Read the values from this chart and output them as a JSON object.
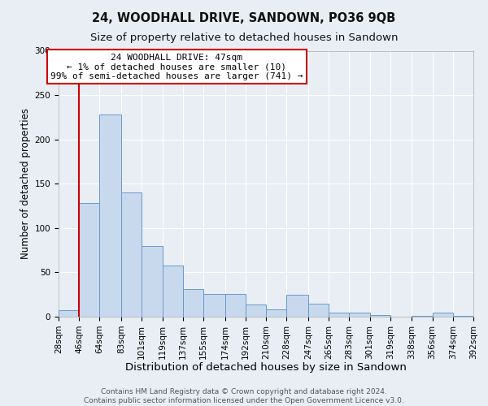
{
  "title": "24, WOODHALL DRIVE, SANDOWN, PO36 9QB",
  "subtitle": "Size of property relative to detached houses in Sandown",
  "xlabel": "Distribution of detached houses by size in Sandown",
  "ylabel": "Number of detached properties",
  "bar_left_edges": [
    28,
    46,
    64,
    83,
    101,
    119,
    137,
    155,
    174,
    192,
    210,
    228,
    247,
    265,
    283,
    301,
    319,
    338,
    356,
    374
  ],
  "bar_heights": [
    7,
    128,
    228,
    140,
    80,
    58,
    31,
    26,
    26,
    14,
    8,
    25,
    15,
    5,
    5,
    2,
    0,
    1,
    5,
    1
  ],
  "bar_widths": [
    18,
    18,
    19,
    18,
    18,
    18,
    18,
    19,
    18,
    18,
    18,
    19,
    18,
    18,
    18,
    18,
    19,
    18,
    18,
    18
  ],
  "bar_color": "#c8d9ee",
  "bar_edge_color": "#6699cc",
  "vline_x": 46,
  "vline_color": "#cc0000",
  "xlim": [
    28,
    392
  ],
  "ylim": [
    0,
    300
  ],
  "yticks": [
    0,
    50,
    100,
    150,
    200,
    250,
    300
  ],
  "xtick_labels": [
    "28sqm",
    "46sqm",
    "64sqm",
    "83sqm",
    "101sqm",
    "119sqm",
    "137sqm",
    "155sqm",
    "174sqm",
    "192sqm",
    "210sqm",
    "228sqm",
    "247sqm",
    "265sqm",
    "283sqm",
    "301sqm",
    "319sqm",
    "338sqm",
    "356sqm",
    "374sqm",
    "392sqm"
  ],
  "annotation_title": "24 WOODHALL DRIVE: 47sqm",
  "annotation_line1": "← 1% of detached houses are smaller (10)",
  "annotation_line2": "99% of semi-detached houses are larger (741) →",
  "annotation_box_color": "#ffffff",
  "annotation_box_edge": "#cc0000",
  "footer_line1": "Contains HM Land Registry data © Crown copyright and database right 2024.",
  "footer_line2": "Contains public sector information licensed under the Open Government Licence v3.0.",
  "bg_color": "#e8eef4",
  "grid_color": "#ffffff",
  "title_fontsize": 10.5,
  "subtitle_fontsize": 9.5,
  "xlabel_fontsize": 9.5,
  "ylabel_fontsize": 8.5,
  "tick_fontsize": 7.5,
  "annot_fontsize": 8,
  "footer_fontsize": 6.5
}
